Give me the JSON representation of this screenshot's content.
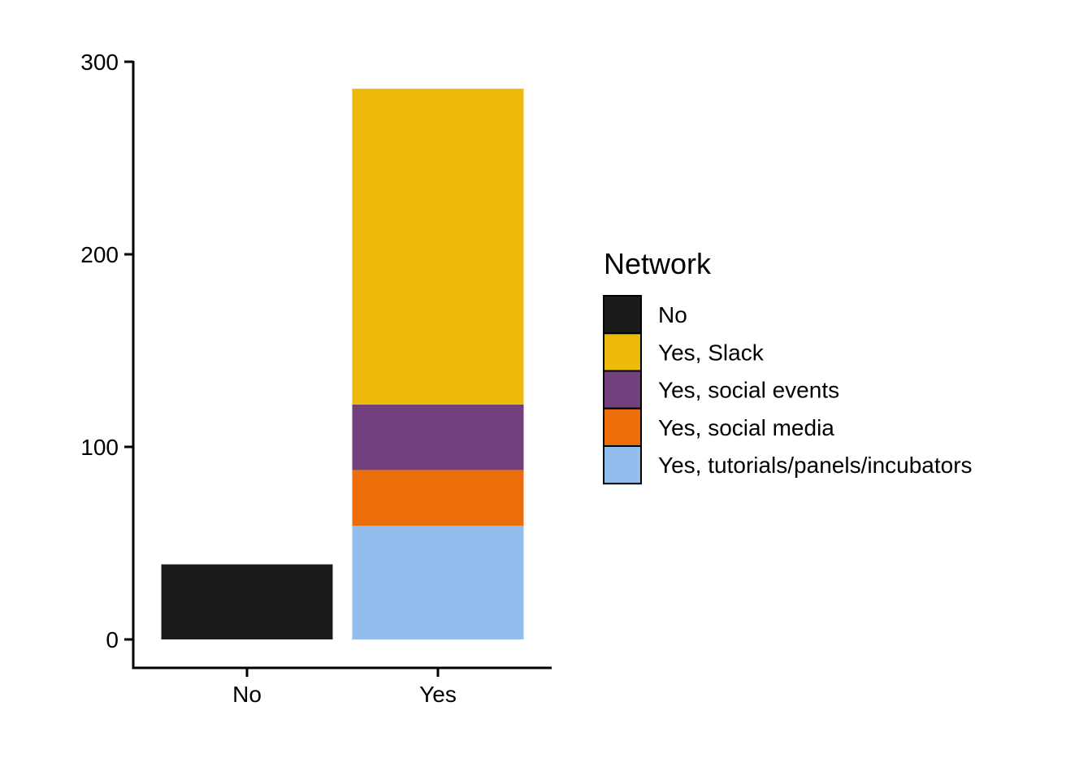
{
  "chart_data": {
    "type": "bar",
    "stacked": true,
    "categories": [
      "No",
      "Yes"
    ],
    "series": [
      {
        "name": "No",
        "color": "#1b1b1b",
        "values": [
          39,
          0
        ]
      },
      {
        "name": "Yes, tutorials/panels/incubators",
        "color": "#92bdec",
        "values": [
          0,
          59
        ]
      },
      {
        "name": "Yes, social media",
        "color": "#ec6e0b",
        "values": [
          0,
          29
        ]
      },
      {
        "name": "Yes, social events",
        "color": "#71407d",
        "values": [
          0,
          34
        ]
      },
      {
        "name": "Yes, Slack",
        "color": "#edb90b",
        "values": [
          0,
          164
        ]
      }
    ],
    "y_ticks": [
      0,
      100,
      200,
      300
    ],
    "ylim": [
      -15,
      300
    ],
    "grid": false,
    "xlabel": "",
    "ylabel": "",
    "title": "",
    "legend": {
      "title": "Network",
      "position": "right",
      "entries": [
        "No",
        "Yes, Slack",
        "Yes, social events",
        "Yes, social media",
        "Yes, tutorials/panels/incubators"
      ]
    }
  }
}
